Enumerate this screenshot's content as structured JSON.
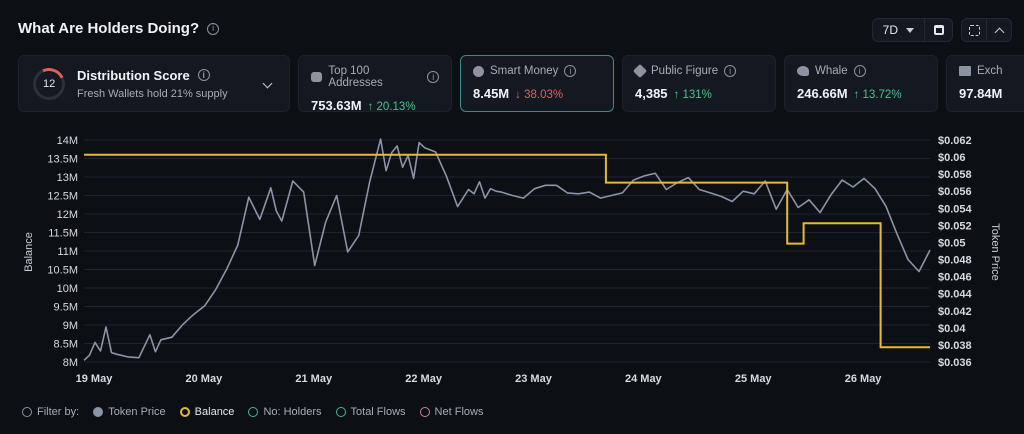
{
  "header": {
    "title": "What Are Holders Doing?",
    "info_icon": "info-icon"
  },
  "controls": {
    "period": "7D",
    "calendar_icon": "calendar-icon",
    "expand_icon": "expand-icon",
    "collapse_icon": "chevron-up-icon"
  },
  "distribution": {
    "score": "12",
    "title": "Distribution Score",
    "subtitle": "Fresh Wallets hold 21% supply"
  },
  "metrics": [
    {
      "label": "Top 100 Addresses",
      "value": "753.63M",
      "change": "↑ 20.13%",
      "direction": "up",
      "icon": "wallet-icon"
    },
    {
      "label": "Smart Money",
      "value": "8.45M",
      "change": "↓ 38.03%",
      "direction": "down",
      "icon": "brain-icon",
      "active": true
    },
    {
      "label": "Public Figure",
      "value": "4,385",
      "change": "↑ 131%",
      "direction": "up",
      "icon": "star-icon"
    },
    {
      "label": "Whale",
      "value": "246.66M",
      "change": "↑ 13.72%",
      "direction": "up",
      "icon": "whale-icon"
    },
    {
      "label": "Exch",
      "value": "97.84M",
      "change": "",
      "direction": "up",
      "icon": "bank-icon"
    }
  ],
  "legend": {
    "filter_label": "Filter by:",
    "items": [
      "Token Price",
      "Balance",
      "No: Holders",
      "Total Flows",
      "Net Flows"
    ]
  },
  "colors": {
    "price": "#8b95a7",
    "balance": "#e8b931",
    "accent_up": "#4cc38a",
    "accent_down": "#e0605a"
  },
  "chart_data": {
    "type": "line",
    "ylabel_left": "Balance",
    "ylabel_right": "Token Price",
    "x_ticks": [
      "19 May",
      "20 May",
      "21 May",
      "22 May",
      "23 May",
      "24 May",
      "25 May",
      "26 May"
    ],
    "y_left_ticks": [
      "8M",
      "8.5M",
      "9M",
      "9.5M",
      "10M",
      "10.5M",
      "11M",
      "11.5M",
      "12M",
      "12.5M",
      "13M",
      "13.5M",
      "14M"
    ],
    "y_right_ticks": [
      "$0.036",
      "$0.038",
      "$0.04",
      "$0.042",
      "$0.044",
      "$0.046",
      "$0.048",
      "$0.05",
      "$0.052",
      "$0.054",
      "$0.056",
      "$0.058",
      "$0.06",
      "$0.062"
    ],
    "ylim_left": [
      8,
      14
    ],
    "ylim_right": [
      0.036,
      0.062
    ],
    "series": [
      {
        "name": "Balance",
        "axis": "left",
        "x": [
          0,
          3.5,
          3.5,
          4.75,
          4.75,
          6.4,
          6.4,
          6.55,
          6.55,
          7.25,
          7.25,
          7.7
        ],
        "values": [
          13.6,
          13.6,
          13.6,
          13.6,
          12.85,
          12.85,
          11.2,
          11.2,
          11.75,
          11.75,
          8.4,
          8.4
        ]
      },
      {
        "name": "Token Price",
        "axis": "right",
        "x": [
          0,
          0.05,
          0.1,
          0.15,
          0.2,
          0.25,
          0.3,
          0.4,
          0.5,
          0.6,
          0.65,
          0.7,
          0.8,
          0.9,
          1.0,
          1.1,
          1.2,
          1.3,
          1.4,
          1.5,
          1.6,
          1.7,
          1.75,
          1.8,
          1.9,
          2.0,
          2.1,
          2.2,
          2.3,
          2.4,
          2.5,
          2.6,
          2.7,
          2.75,
          2.8,
          2.85,
          2.9,
          2.95,
          3.0,
          3.05,
          3.1,
          3.2,
          3.3,
          3.4,
          3.5,
          3.55,
          3.6,
          3.65,
          3.7,
          3.75,
          3.8,
          3.9,
          4.0,
          4.1,
          4.2,
          4.3,
          4.4,
          4.5,
          4.6,
          4.7,
          4.8,
          4.9,
          5.0,
          5.1,
          5.2,
          5.3,
          5.4,
          5.5,
          5.6,
          5.7,
          5.8,
          5.9,
          6.0,
          6.1,
          6.2,
          6.3,
          6.4,
          6.5,
          6.6,
          6.7,
          6.8,
          6.9,
          7.0,
          7.1,
          7.2,
          7.3,
          7.4,
          7.5,
          7.6,
          7.7
        ],
        "values": [
          0.0362,
          0.0368,
          0.0383,
          0.0373,
          0.0401,
          0.0371,
          0.0369,
          0.0366,
          0.0365,
          0.0392,
          0.0372,
          0.0386,
          0.0389,
          0.0404,
          0.0416,
          0.0426,
          0.0445,
          0.0469,
          0.0497,
          0.0553,
          0.0527,
          0.0564,
          0.0537,
          0.0525,
          0.0572,
          0.0559,
          0.0473,
          0.0524,
          0.0555,
          0.0489,
          0.0508,
          0.0571,
          0.0621,
          0.0584,
          0.0605,
          0.0613,
          0.0588,
          0.0602,
          0.0575,
          0.0617,
          0.0611,
          0.0606,
          0.0577,
          0.0542,
          0.0562,
          0.0557,
          0.0571,
          0.0552,
          0.0563,
          0.056,
          0.0559,
          0.0555,
          0.0552,
          0.0563,
          0.0567,
          0.0567,
          0.0558,
          0.0557,
          0.0559,
          0.0552,
          0.0555,
          0.0558,
          0.0573,
          0.0578,
          0.0581,
          0.0562,
          0.057,
          0.0576,
          0.0562,
          0.0558,
          0.0554,
          0.0548,
          0.056,
          0.0557,
          0.0572,
          0.0539,
          0.0562,
          0.0541,
          0.055,
          0.0535,
          0.0556,
          0.0573,
          0.0565,
          0.0575,
          0.0563,
          0.0542,
          0.051,
          0.048,
          0.0466,
          0.0491
        ]
      }
    ],
    "grid": true,
    "legend_position": "bottom-left"
  }
}
